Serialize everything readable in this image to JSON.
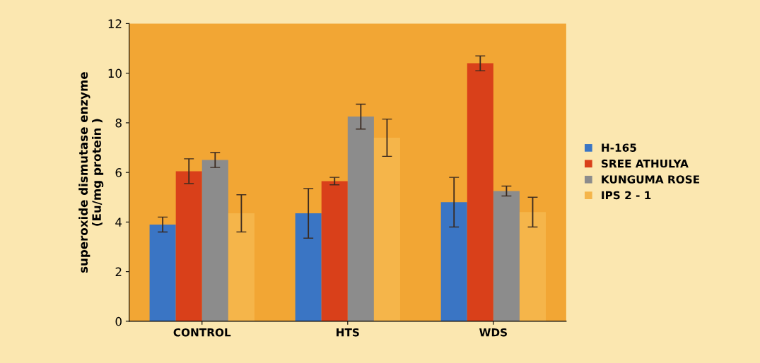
{
  "chart_data": {
    "type": "bar",
    "ylabel": "superoxide dismutase enzyme\n(Eu/mg protein )",
    "categories": [
      "CONTROL",
      "HTS",
      "WDS"
    ],
    "series": [
      {
        "name": "H-165",
        "color": "#3a75c4",
        "values": [
          3.9,
          4.35,
          4.8
        ],
        "errors": [
          0.3,
          1.0,
          1.0
        ]
      },
      {
        "name": "SREE ATHULYA",
        "color": "#d9401a",
        "values": [
          6.05,
          5.65,
          10.4
        ],
        "errors": [
          0.5,
          0.15,
          0.3
        ]
      },
      {
        "name": "KUNGUMA ROSE",
        "color": "#8c8c8c",
        "values": [
          6.5,
          8.25,
          5.25
        ],
        "errors": [
          0.3,
          0.5,
          0.2
        ]
      },
      {
        "name": "IPS 2 - 1",
        "color": "#f5b54a",
        "values": [
          4.35,
          7.4,
          4.4
        ],
        "errors": [
          0.75,
          0.75,
          0.6
        ]
      }
    ],
    "ylim": [
      0,
      12
    ],
    "yticks": [
      0,
      2,
      4,
      6,
      8,
      10,
      12
    ],
    "grid": false,
    "legend": "right"
  }
}
